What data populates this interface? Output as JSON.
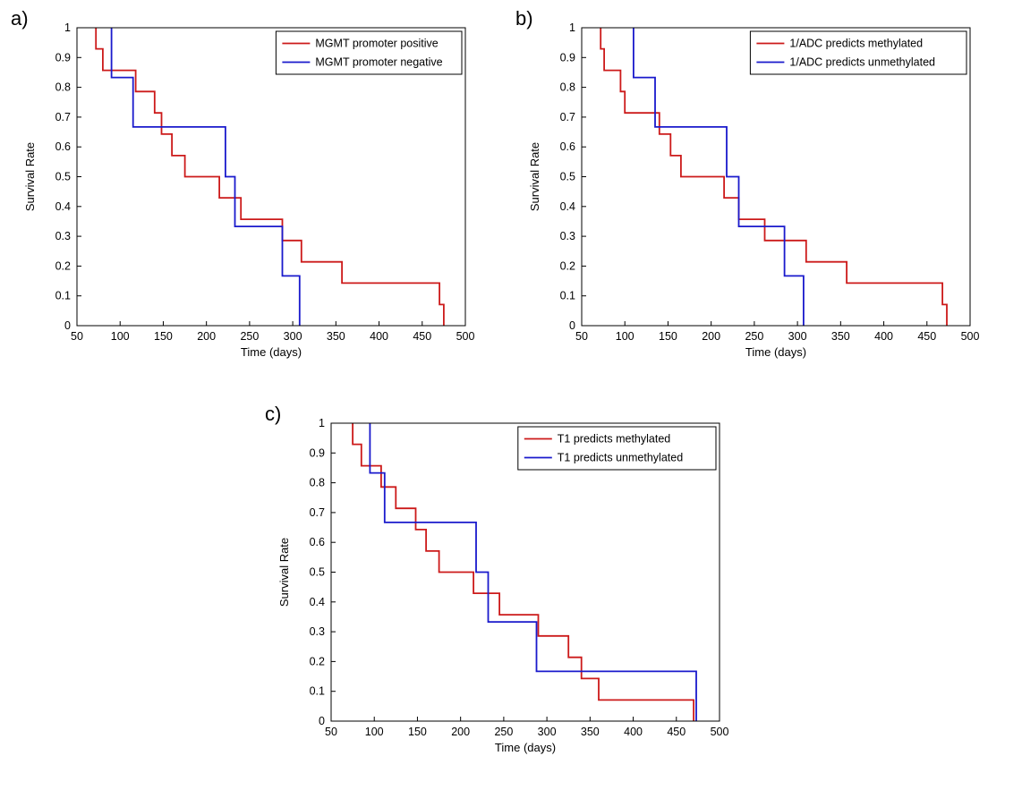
{
  "page": {
    "background": "#ffffff"
  },
  "chart_data": [
    {
      "id": "a",
      "panel_label": "a)",
      "type": "line",
      "subtype": "step-survival",
      "title": "",
      "xlabel": "Time (days)",
      "ylabel": "Survival Rate",
      "xlim": [
        50,
        500
      ],
      "ylim": [
        0,
        1
      ],
      "xticks": [
        50,
        100,
        150,
        200,
        250,
        300,
        350,
        400,
        450,
        500
      ],
      "yticks": [
        0,
        0.1,
        0.2,
        0.3,
        0.4,
        0.5,
        0.6,
        0.7,
        0.8,
        0.9,
        1
      ],
      "grid": false,
      "legend_position": "top-right",
      "series": [
        {
          "name": "MGMT promoter positive",
          "color": "#cc1a1a",
          "events": [
            [
              72,
              0.929
            ],
            [
              80,
              0.857
            ],
            [
              118,
              0.786
            ],
            [
              140,
              0.714
            ],
            [
              148,
              0.643
            ],
            [
              160,
              0.571
            ],
            [
              175,
              0.5
            ],
            [
              215,
              0.429
            ],
            [
              240,
              0.357
            ],
            [
              288,
              0.286
            ],
            [
              310,
              0.214
            ],
            [
              357,
              0.143
            ],
            [
              470,
              0.071
            ],
            [
              475,
              0
            ]
          ]
        },
        {
          "name": "MGMT promoter negative",
          "color": "#1a1acc",
          "events": [
            [
              90,
              0.833
            ],
            [
              115,
              0.667
            ],
            [
              222,
              0.5
            ],
            [
              233,
              0.333
            ],
            [
              288,
              0.167
            ],
            [
              308,
              0
            ]
          ]
        }
      ]
    },
    {
      "id": "b",
      "panel_label": "b)",
      "type": "line",
      "subtype": "step-survival",
      "title": "",
      "xlabel": "Time (days)",
      "ylabel": "Survival Rate",
      "xlim": [
        50,
        500
      ],
      "ylim": [
        0,
        1
      ],
      "xticks": [
        50,
        100,
        150,
        200,
        250,
        300,
        350,
        400,
        450,
        500
      ],
      "yticks": [
        0,
        0.1,
        0.2,
        0.3,
        0.4,
        0.5,
        0.6,
        0.7,
        0.8,
        0.9,
        1
      ],
      "grid": false,
      "legend_position": "top-right",
      "series": [
        {
          "name": "1/ADC predicts methylated",
          "color": "#cc1a1a",
          "events": [
            [
              72,
              0.929
            ],
            [
              76,
              0.857
            ],
            [
              95,
              0.786
            ],
            [
              100,
              0.714
            ],
            [
              140,
              0.643
            ],
            [
              153,
              0.571
            ],
            [
              165,
              0.5
            ],
            [
              215,
              0.429
            ],
            [
              232,
              0.357
            ],
            [
              262,
              0.286
            ],
            [
              310,
              0.214
            ],
            [
              357,
              0.143
            ],
            [
              468,
              0.071
            ],
            [
              473,
              0
            ]
          ]
        },
        {
          "name": "1/ADC predicts unmethylated",
          "color": "#1a1acc",
          "events": [
            [
              110,
              0.833
            ],
            [
              135,
              0.667
            ],
            [
              218,
              0.5
            ],
            [
              232,
              0.333
            ],
            [
              285,
              0.167
            ],
            [
              307,
              0
            ]
          ]
        }
      ]
    },
    {
      "id": "c",
      "panel_label": "c)",
      "type": "line",
      "subtype": "step-survival",
      "title": "",
      "xlabel": "Time (days)",
      "ylabel": "Survival Rate",
      "xlim": [
        50,
        500
      ],
      "ylim": [
        0,
        1
      ],
      "xticks": [
        50,
        100,
        150,
        200,
        250,
        300,
        350,
        400,
        450,
        500
      ],
      "yticks": [
        0,
        0.1,
        0.2,
        0.3,
        0.4,
        0.5,
        0.6,
        0.7,
        0.8,
        0.9,
        1
      ],
      "grid": false,
      "legend_position": "top-right",
      "series": [
        {
          "name": "T1 predicts methylated",
          "color": "#cc1a1a",
          "events": [
            [
              75,
              0.929
            ],
            [
              85,
              0.857
            ],
            [
              108,
              0.786
            ],
            [
              125,
              0.714
            ],
            [
              148,
              0.643
            ],
            [
              160,
              0.571
            ],
            [
              175,
              0.5
            ],
            [
              215,
              0.429
            ],
            [
              245,
              0.357
            ],
            [
              290,
              0.286
            ],
            [
              325,
              0.214
            ],
            [
              340,
              0.143
            ],
            [
              360,
              0.071
            ],
            [
              470,
              0
            ]
          ]
        },
        {
          "name": "T1 predicts unmethylated",
          "color": "#1a1acc",
          "events": [
            [
              95,
              0.833
            ],
            [
              112,
              0.667
            ],
            [
              218,
              0.5
            ],
            [
              232,
              0.333
            ],
            [
              288,
              0.167
            ],
            [
              473,
              0
            ]
          ]
        }
      ]
    }
  ]
}
